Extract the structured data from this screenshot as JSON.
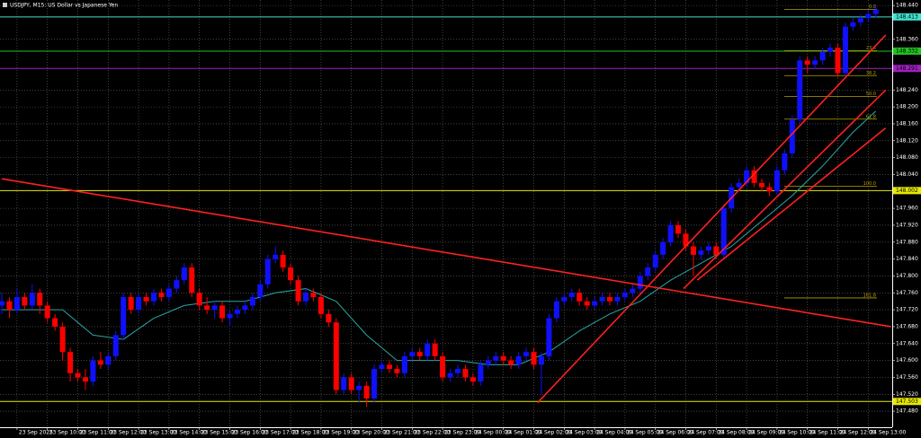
{
  "chart_data": {
    "type": "candlestick",
    "title": "USDJPY, M15:  US Dollar vs Japanese Yen",
    "up_color": "#1010ff",
    "down_color": "#ff0000",
    "grid": true,
    "ylim": [
      147.442,
      148.453
    ],
    "yticks": [
      {
        "value": 147.48,
        "label": "147.480"
      },
      {
        "value": 147.52,
        "label": "147.520"
      },
      {
        "value": 147.56,
        "label": "147.560"
      },
      {
        "value": 147.6,
        "label": "147.600"
      },
      {
        "value": 147.64,
        "label": "147.640"
      },
      {
        "value": 147.68,
        "label": "147.680"
      },
      {
        "value": 147.72,
        "label": "147.720"
      },
      {
        "value": 147.76,
        "label": "147.760"
      },
      {
        "value": 147.8,
        "label": "147.800"
      },
      {
        "value": 147.84,
        "label": "147.840"
      },
      {
        "value": 147.88,
        "label": "147.880"
      },
      {
        "value": 147.92,
        "label": "147.920"
      },
      {
        "value": 147.96,
        "label": "147.960"
      },
      {
        "value": 148.04,
        "label": "148.040"
      },
      {
        "value": 148.08,
        "label": "148.080"
      },
      {
        "value": 148.12,
        "label": "148.120"
      },
      {
        "value": 148.16,
        "label": "148.160"
      },
      {
        "value": 148.2,
        "label": "148.200"
      },
      {
        "value": 148.24,
        "label": "148.240"
      },
      {
        "value": 148.36,
        "label": "148.360"
      },
      {
        "value": 148.44,
        "label": "148.440"
      }
    ],
    "categories": [
      null,
      null,
      "23 Sep 2025",
      null,
      null,
      null,
      "23 Sep 10:00",
      null,
      null,
      null,
      "23 Sep 11:00",
      null,
      null,
      null,
      "23 Sep 12:00",
      null,
      null,
      null,
      "23 Sep 13:00",
      null,
      null,
      null,
      "23 Sep 14:00",
      null,
      null,
      null,
      "23 Sep 15:00",
      null,
      null,
      null,
      "23 Sep 16:00",
      null,
      null,
      null,
      "23 Sep 17:00",
      null,
      null,
      null,
      "23 Sep 18:00",
      null,
      null,
      null,
      "23 Sep 19:00",
      null,
      null,
      null,
      "23 Sep 20:00",
      null,
      null,
      null,
      "23 Sep 21:00",
      null,
      null,
      null,
      "23 Sep 22:00",
      null,
      null,
      null,
      "23 Sep 23:00",
      null,
      null,
      null,
      "24 Sep 00:00",
      null,
      null,
      null,
      "24 Sep 01:00",
      null,
      null,
      null,
      "24 Sep 02:00",
      null,
      null,
      null,
      "24 Sep 03:00",
      null,
      null,
      null,
      "24 Sep 04:00",
      null,
      null,
      null,
      "24 Sep 05:00",
      null,
      null,
      null,
      "24 Sep 06:00",
      null,
      null,
      null,
      "24 Sep 07:00",
      null,
      null,
      null,
      "24 Sep 08:00",
      null,
      null,
      null,
      "24 Sep 09:00",
      null,
      null,
      null,
      "24 Sep 10:00",
      null,
      null,
      null,
      "24 Sep 11:00",
      null,
      null,
      null,
      "24 Sep 12:00",
      null,
      null,
      null,
      "24 Sep 13:00",
      null
    ],
    "candles": [
      [
        147.73,
        147.76,
        147.71,
        147.74
      ],
      [
        147.74,
        147.75,
        147.7,
        147.72
      ],
      [
        147.72,
        147.77,
        147.71,
        147.75
      ],
      [
        147.75,
        147.76,
        147.72,
        147.73
      ],
      [
        147.73,
        147.78,
        147.72,
        147.76
      ],
      [
        147.76,
        147.77,
        147.71,
        147.73
      ],
      [
        147.73,
        147.74,
        147.69,
        147.7
      ],
      [
        147.7,
        147.71,
        147.67,
        147.68
      ],
      [
        147.68,
        147.69,
        147.6,
        147.62
      ],
      [
        147.62,
        147.63,
        147.55,
        147.57
      ],
      [
        147.57,
        147.58,
        147.55,
        147.56
      ],
      [
        147.56,
        147.58,
        147.53,
        147.55
      ],
      [
        147.55,
        147.61,
        147.54,
        147.6
      ],
      [
        147.6,
        147.62,
        147.58,
        147.59
      ],
      [
        147.59,
        147.62,
        147.58,
        147.61
      ],
      [
        147.61,
        147.67,
        147.6,
        147.66
      ],
      [
        147.66,
        147.76,
        147.65,
        147.75
      ],
      [
        147.75,
        147.76,
        147.71,
        147.72
      ],
      [
        147.72,
        147.76,
        147.71,
        147.75
      ],
      [
        147.75,
        147.76,
        147.73,
        147.74
      ],
      [
        147.74,
        147.77,
        147.73,
        147.76
      ],
      [
        147.76,
        147.77,
        147.74,
        147.75
      ],
      [
        147.75,
        147.78,
        147.74,
        147.77
      ],
      [
        147.77,
        147.8,
        147.76,
        147.79
      ],
      [
        147.79,
        147.83,
        147.78,
        147.82
      ],
      [
        147.82,
        147.83,
        147.75,
        147.76
      ],
      [
        147.76,
        147.77,
        147.72,
        147.73
      ],
      [
        147.73,
        147.75,
        147.71,
        147.72
      ],
      [
        147.72,
        147.74,
        147.7,
        147.73
      ],
      [
        147.73,
        147.74,
        147.69,
        147.7
      ],
      [
        147.7,
        147.72,
        147.68,
        147.71
      ],
      [
        147.71,
        147.73,
        147.7,
        147.72
      ],
      [
        147.72,
        147.74,
        147.71,
        147.73
      ],
      [
        147.73,
        147.76,
        147.72,
        147.75
      ],
      [
        147.75,
        147.79,
        147.74,
        147.78
      ],
      [
        147.78,
        147.85,
        147.77,
        147.84
      ],
      [
        147.84,
        147.87,
        147.83,
        147.85
      ],
      [
        147.85,
        147.86,
        147.81,
        147.82
      ],
      [
        147.82,
        147.83,
        147.78,
        147.79
      ],
      [
        147.79,
        147.8,
        147.73,
        147.74
      ],
      [
        147.74,
        147.77,
        147.73,
        147.76
      ],
      [
        147.76,
        147.77,
        147.74,
        147.75
      ],
      [
        147.75,
        147.76,
        147.7,
        147.71
      ],
      [
        147.71,
        147.72,
        147.68,
        147.69
      ],
      [
        147.69,
        147.7,
        147.52,
        147.53
      ],
      [
        147.53,
        147.57,
        147.52,
        147.56
      ],
      [
        147.56,
        147.57,
        147.52,
        147.53
      ],
      [
        147.53,
        147.55,
        147.5,
        147.54
      ],
      [
        147.54,
        147.55,
        147.49,
        147.51
      ],
      [
        147.51,
        147.59,
        147.5,
        147.58
      ],
      [
        147.58,
        147.6,
        147.57,
        147.59
      ],
      [
        147.59,
        147.6,
        147.57,
        147.58
      ],
      [
        147.58,
        147.59,
        147.56,
        147.57
      ],
      [
        147.57,
        147.62,
        147.56,
        147.61
      ],
      [
        147.61,
        147.63,
        147.6,
        147.62
      ],
      [
        147.62,
        147.63,
        147.6,
        147.61
      ],
      [
        147.61,
        147.65,
        147.6,
        147.64
      ],
      [
        147.64,
        147.65,
        147.6,
        147.61
      ],
      [
        147.61,
        147.62,
        147.55,
        147.56
      ],
      [
        147.56,
        147.58,
        147.55,
        147.57
      ],
      [
        147.57,
        147.59,
        147.56,
        147.58
      ],
      [
        147.58,
        147.59,
        147.55,
        147.56
      ],
      [
        147.56,
        147.57,
        147.54,
        147.55
      ],
      [
        147.55,
        147.6,
        147.54,
        147.59
      ],
      [
        147.59,
        147.61,
        147.58,
        147.6
      ],
      [
        147.6,
        147.62,
        147.59,
        147.61
      ],
      [
        147.61,
        147.62,
        147.59,
        147.6
      ],
      [
        147.6,
        147.61,
        147.58,
        147.59
      ],
      [
        147.59,
        147.62,
        147.58,
        147.61
      ],
      [
        147.61,
        147.63,
        147.6,
        147.62
      ],
      [
        147.62,
        147.63,
        147.58,
        147.59
      ],
      [
        147.59,
        147.62,
        147.52,
        147.61
      ],
      [
        147.61,
        147.71,
        147.6,
        147.7
      ],
      [
        147.7,
        147.75,
        147.69,
        147.74
      ],
      [
        147.74,
        147.76,
        147.73,
        147.75
      ],
      [
        147.75,
        147.77,
        147.74,
        147.76
      ],
      [
        147.76,
        147.77,
        147.73,
        147.74
      ],
      [
        147.74,
        147.75,
        147.72,
        147.73
      ],
      [
        147.73,
        147.75,
        147.72,
        147.74
      ],
      [
        147.74,
        147.76,
        147.73,
        147.75
      ],
      [
        147.75,
        147.76,
        147.73,
        147.74
      ],
      [
        147.74,
        147.76,
        147.73,
        147.75
      ],
      [
        147.75,
        147.77,
        147.74,
        147.76
      ],
      [
        147.76,
        147.78,
        147.75,
        147.77
      ],
      [
        147.77,
        147.81,
        147.76,
        147.8
      ],
      [
        147.8,
        147.83,
        147.79,
        147.82
      ],
      [
        147.82,
        147.86,
        147.81,
        147.85
      ],
      [
        147.85,
        147.89,
        147.84,
        147.88
      ],
      [
        147.88,
        147.93,
        147.87,
        147.92
      ],
      [
        147.92,
        147.93,
        147.89,
        147.9
      ],
      [
        147.9,
        147.91,
        147.86,
        147.87
      ],
      [
        147.87,
        147.88,
        147.8,
        147.85
      ],
      [
        147.85,
        147.87,
        147.84,
        147.86
      ],
      [
        147.86,
        147.88,
        147.85,
        147.87
      ],
      [
        147.87,
        147.88,
        147.84,
        147.85
      ],
      [
        147.85,
        147.97,
        147.84,
        147.96
      ],
      [
        147.96,
        148.02,
        147.95,
        148.01
      ],
      [
        148.01,
        148.03,
        148.0,
        148.02
      ],
      [
        148.02,
        148.06,
        148.01,
        148.05
      ],
      [
        148.05,
        148.06,
        148.01,
        148.02
      ],
      [
        148.02,
        148.03,
        148.0,
        148.01
      ],
      [
        148.01,
        148.02,
        147.99,
        148.0
      ],
      [
        148.0,
        148.06,
        147.99,
        148.05
      ],
      [
        148.05,
        148.1,
        148.04,
        148.09
      ],
      [
        148.09,
        148.18,
        148.08,
        148.17
      ],
      [
        148.17,
        148.32,
        148.16,
        148.31
      ],
      [
        148.31,
        148.32,
        148.28,
        148.3
      ],
      [
        148.3,
        148.32,
        148.29,
        148.31
      ],
      [
        148.31,
        148.34,
        148.3,
        148.33
      ],
      [
        148.33,
        148.35,
        148.32,
        148.34
      ],
      [
        148.34,
        148.35,
        148.27,
        148.28
      ],
      [
        148.28,
        148.4,
        148.27,
        148.39
      ],
      [
        148.39,
        148.41,
        148.38,
        148.4
      ],
      [
        148.4,
        148.42,
        148.39,
        148.41
      ],
      [
        148.41,
        148.43,
        148.4,
        148.42
      ],
      [
        148.42,
        148.44,
        148.41,
        148.43
      ]
    ],
    "moving_average": {
      "color": "#2aa7a7",
      "x": [
        0,
        4,
        8,
        12,
        16,
        20,
        24,
        28,
        32,
        36,
        40,
        44,
        48,
        52,
        56,
        60,
        64,
        68,
        72,
        76,
        80,
        84,
        88,
        92,
        96,
        100,
        104,
        108,
        112,
        115
      ],
      "values": [
        147.72,
        147.72,
        147.72,
        147.66,
        147.65,
        147.7,
        147.73,
        147.74,
        147.74,
        147.76,
        147.77,
        147.74,
        147.66,
        147.6,
        147.6,
        147.6,
        147.59,
        147.59,
        147.62,
        147.67,
        147.71,
        147.74,
        147.79,
        147.83,
        147.87,
        147.93,
        147.99,
        148.06,
        148.14,
        148.19
      ]
    },
    "levels": [
      {
        "price": 148.413,
        "label": "148.413",
        "color": "#40e0d0"
      },
      {
        "price": 148.332,
        "label": "148.332",
        "color": "#22c022"
      },
      {
        "price": 148.291,
        "label": "148.291",
        "color": "#a020c0"
      },
      {
        "price": 148.002,
        "label": "148.002",
        "color": "#e8e800"
      },
      {
        "price": 147.503,
        "label": "147.503",
        "color": "#e8e800"
      }
    ],
    "fibonacci": {
      "color": "#b8a000",
      "levels": [
        {
          "label": "0.0",
          "price": 148.431
        },
        {
          "label": "23.6",
          "price": 148.333
        },
        {
          "label": "38.2",
          "price": 148.274
        },
        {
          "label": "50.0",
          "price": 148.225
        },
        {
          "label": "61.8",
          "price": 148.171
        },
        {
          "label": "100.0",
          "price": 148.012
        },
        {
          "label": "161.8",
          "price": 147.748
        }
      ]
    },
    "trend_lines": {
      "color": "#ff2020",
      "lines": [
        [
          [
            0,
            148.03
          ],
          [
            117,
            147.68
          ]
        ],
        [
          [
            70.5,
            147.5
          ],
          [
            116.3,
            148.37
          ]
        ],
        [
          [
            89.7,
            147.77
          ],
          [
            116.3,
            148.24
          ]
        ],
        [
          [
            91.5,
            147.79
          ],
          [
            116.3,
            148.15
          ]
        ]
      ]
    }
  }
}
